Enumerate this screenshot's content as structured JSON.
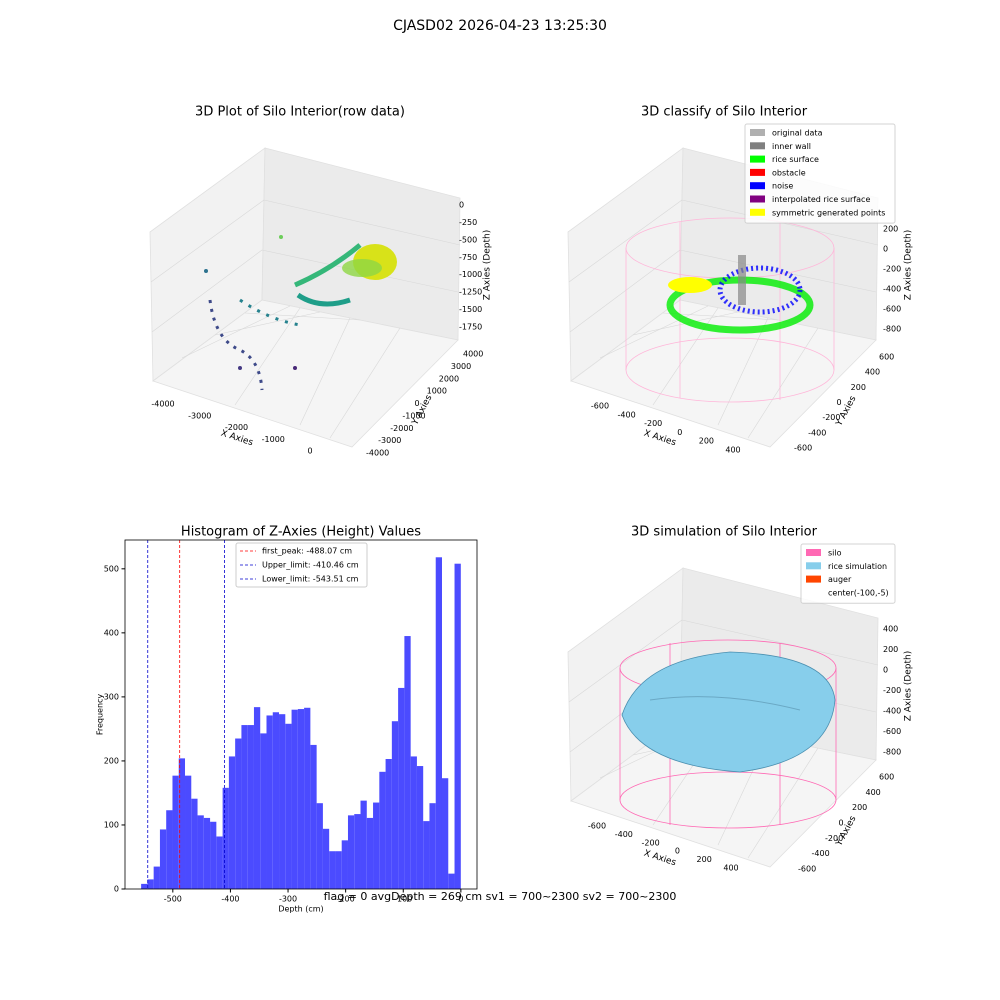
{
  "title": "CJASD02 2026-04-23 13:25:30",
  "footer": "flag = 0     avgDepth = 269 cm  sv1 = 700~2300  sv2 = 700~2300",
  "chart_data": [
    {
      "type": "scatter3d",
      "title": "3D Plot of Silo Interior(row data)",
      "xlabel": "X Axies",
      "ylabel": "Y Axies",
      "zlabel": "Z Axies (Depth)",
      "xticks": [
        -4000,
        -3000,
        -2000,
        -1000,
        0
      ],
      "yticks": [
        -4000,
        -3000,
        -2000,
        -1000,
        0,
        1000,
        2000,
        3000,
        4000
      ],
      "zticks": [
        0,
        -250,
        -500,
        -750,
        -1000,
        -1250,
        -1500,
        -1750
      ]
    },
    {
      "type": "scatter3d",
      "title": "3D classify of Silo Interior",
      "xlabel": "X Axies",
      "ylabel": "Y Axies",
      "zlabel": "Z Axies (Depth)",
      "xticks": [
        -600,
        -400,
        -200,
        0,
        200,
        400
      ],
      "yticks": [
        -600,
        -400,
        -200,
        0,
        200,
        400,
        600
      ],
      "zticks": [
        200,
        0,
        -200,
        -400,
        -600,
        -800
      ],
      "series": [
        {
          "name": "original data",
          "color": "#b0b0b0"
        },
        {
          "name": "inner wall",
          "color": "#808080"
        },
        {
          "name": "rice surface",
          "color": "#00ff00"
        },
        {
          "name": "obstacle",
          "color": "#ff0000"
        },
        {
          "name": "noise",
          "color": "#0000ff"
        },
        {
          "name": "interpolated rice surface",
          "color": "#800080"
        },
        {
          "name": "symmetric generated points",
          "color": "#ffff00"
        }
      ]
    },
    {
      "type": "histogram",
      "title": "Histogram of Z-Axies (Height) Values",
      "xlabel": "Depth (cm)",
      "ylabel": "Frequency",
      "color": "#4b4bff",
      "bins": [
        -555,
        -544.12,
        -533.24,
        -522.36,
        -511.48,
        -500.6,
        -489.72,
        -478.84,
        -467.96,
        -457.08,
        -446.2,
        -435.32,
        -424.44,
        -413.56,
        -402.68,
        -391.8,
        -380.92,
        -370.04,
        -359.16,
        -348.28,
        -337.4,
        -326.52,
        -315.64,
        -304.76,
        -293.88,
        -283,
        -272.12,
        -261.24,
        -250.36,
        -239.48,
        -228.6,
        -217.72,
        -206.84,
        -195.96,
        -185.08,
        -174.2,
        -163.32,
        -152.44,
        -141.56,
        -130.68,
        -119.8,
        -108.92,
        -98.04,
        -87.16,
        -76.28,
        -65.4,
        -54.52,
        -43.64,
        -32.76,
        -21.88,
        -11,
        -0.12
      ],
      "values": [
        8,
        15,
        35,
        93,
        123,
        177,
        204,
        177,
        141,
        115,
        111,
        105,
        82,
        158,
        207,
        235,
        256,
        256,
        284,
        243,
        271,
        276,
        273,
        258,
        280,
        281,
        283,
        225,
        134,
        94,
        59,
        59,
        76,
        115,
        117,
        138,
        111,
        135,
        183,
        203,
        262,
        314,
        395,
        207,
        192,
        106,
        134,
        518,
        173,
        24,
        508
      ],
      "xlim": [
        -583,
        28
      ],
      "ylim": [
        0,
        545
      ],
      "xticks": [
        -500,
        -400,
        -300,
        -200,
        -100,
        0
      ],
      "yticks": [
        0,
        100,
        200,
        300,
        400,
        500
      ],
      "vlines": [
        {
          "value": -488.07,
          "label": "first_peak: -488.07 cm",
          "color": "#ff0000"
        },
        {
          "value": -410.46,
          "label": "Upper_limit: -410.46 cm",
          "color": "#0000cc"
        },
        {
          "value": -543.51,
          "label": "Lower_limit: -543.51 cm",
          "color": "#0000cc"
        }
      ]
    },
    {
      "type": "surface3d",
      "title": "3D simulation of Silo Interior",
      "xlabel": "X Axies",
      "ylabel": "Y Axies",
      "zlabel": "Z Axies (Depth)",
      "xticks": [
        -600,
        -400,
        -200,
        0,
        200,
        400
      ],
      "yticks": [
        -600,
        -400,
        -200,
        0,
        200,
        400,
        600
      ],
      "zticks": [
        400,
        200,
        0,
        -200,
        -400,
        -600,
        -800
      ],
      "series": [
        {
          "name": "silo",
          "color": "#ff69b4"
        },
        {
          "name": "rice simulation",
          "color": "#87ceeb"
        },
        {
          "name": "auger",
          "color": "#ff4500"
        },
        {
          "name": "center(-100,-5)"
        }
      ]
    }
  ]
}
